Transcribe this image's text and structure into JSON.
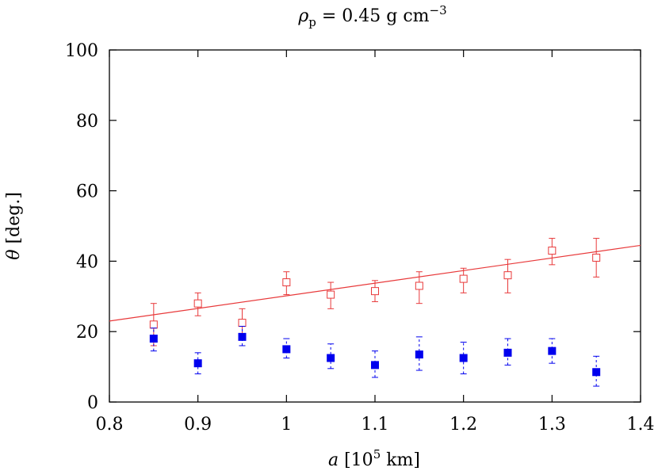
{
  "chart_data": {
    "type": "scatter",
    "title": {
      "symbol": "ρ",
      "subscript": "p",
      "equals": " = 0.45 g cm",
      "superscript": "−3"
    },
    "xlabel": {
      "symbol": "a",
      "text_before": " [10",
      "superscript": "5",
      "text_after": " km]"
    },
    "ylabel": {
      "symbol": "θ",
      "text": " [deg.]"
    },
    "xlim": [
      0.8,
      1.4
    ],
    "ylim": [
      0,
      100
    ],
    "x_ticks": [
      0.8,
      0.9,
      1,
      1.1,
      1.2,
      1.3,
      1.4
    ],
    "x_tick_labels": [
      "0.8",
      "0.9",
      "1",
      "1.1",
      "1.2",
      "1.3",
      "1.4"
    ],
    "y_ticks": [
      0,
      20,
      40,
      60,
      80,
      100
    ],
    "y_tick_labels": [
      "0",
      "20",
      "40",
      "60",
      "80",
      "100"
    ],
    "grid": false,
    "series": [
      {
        "marker": "open-square",
        "color": "#e8393a",
        "points": [
          {
            "x": 0.85,
            "y": 22.0,
            "err_low": 16.0,
            "err_high": 28.0
          },
          {
            "x": 0.9,
            "y": 28.0,
            "err_low": 24.5,
            "err_high": 31.0
          },
          {
            "x": 0.95,
            "y": 22.5,
            "err_low": 18.5,
            "err_high": 26.5
          },
          {
            "x": 1.0,
            "y": 34.0,
            "err_low": 30.5,
            "err_high": 37.0
          },
          {
            "x": 1.05,
            "y": 30.5,
            "err_low": 26.5,
            "err_high": 34.0
          },
          {
            "x": 1.1,
            "y": 31.5,
            "err_low": 28.5,
            "err_high": 34.5
          },
          {
            "x": 1.15,
            "y": 33.0,
            "err_low": 28.0,
            "err_high": 37.0
          },
          {
            "x": 1.2,
            "y": 35.0,
            "err_low": 31.0,
            "err_high": 38.0
          },
          {
            "x": 1.25,
            "y": 36.0,
            "err_low": 31.0,
            "err_high": 40.5
          },
          {
            "x": 1.3,
            "y": 43.0,
            "err_low": 39.0,
            "err_high": 46.5
          },
          {
            "x": 1.35,
            "y": 41.0,
            "err_low": 35.5,
            "err_high": 46.5
          }
        ]
      },
      {
        "marker": "filled-square",
        "color": "#0000ee",
        "points": [
          {
            "x": 0.85,
            "y": 18.0,
            "err_low": 14.5,
            "err_high": 21.0
          },
          {
            "x": 0.9,
            "y": 11.0,
            "err_low": 8.0,
            "err_high": 14.0
          },
          {
            "x": 0.95,
            "y": 18.5,
            "err_low": 16.0,
            "err_high": 21.5
          },
          {
            "x": 1.0,
            "y": 15.0,
            "err_low": 12.5,
            "err_high": 18.0
          },
          {
            "x": 1.05,
            "y": 12.5,
            "err_low": 9.5,
            "err_high": 16.5
          },
          {
            "x": 1.1,
            "y": 10.5,
            "err_low": 7.0,
            "err_high": 14.5
          },
          {
            "x": 1.15,
            "y": 13.5,
            "err_low": 9.0,
            "err_high": 18.5
          },
          {
            "x": 1.2,
            "y": 12.5,
            "err_low": 8.0,
            "err_high": 17.0
          },
          {
            "x": 1.25,
            "y": 14.0,
            "err_low": 10.5,
            "err_high": 18.0
          },
          {
            "x": 1.3,
            "y": 14.5,
            "err_low": 11.0,
            "err_high": 18.0
          },
          {
            "x": 1.35,
            "y": 8.5,
            "err_low": 4.5,
            "err_high": 13.0
          }
        ]
      }
    ],
    "fit_line": {
      "color": "#e8393a",
      "points": [
        {
          "x": 0.8,
          "y": 23.0
        },
        {
          "x": 1.4,
          "y": 44.5
        }
      ]
    }
  }
}
